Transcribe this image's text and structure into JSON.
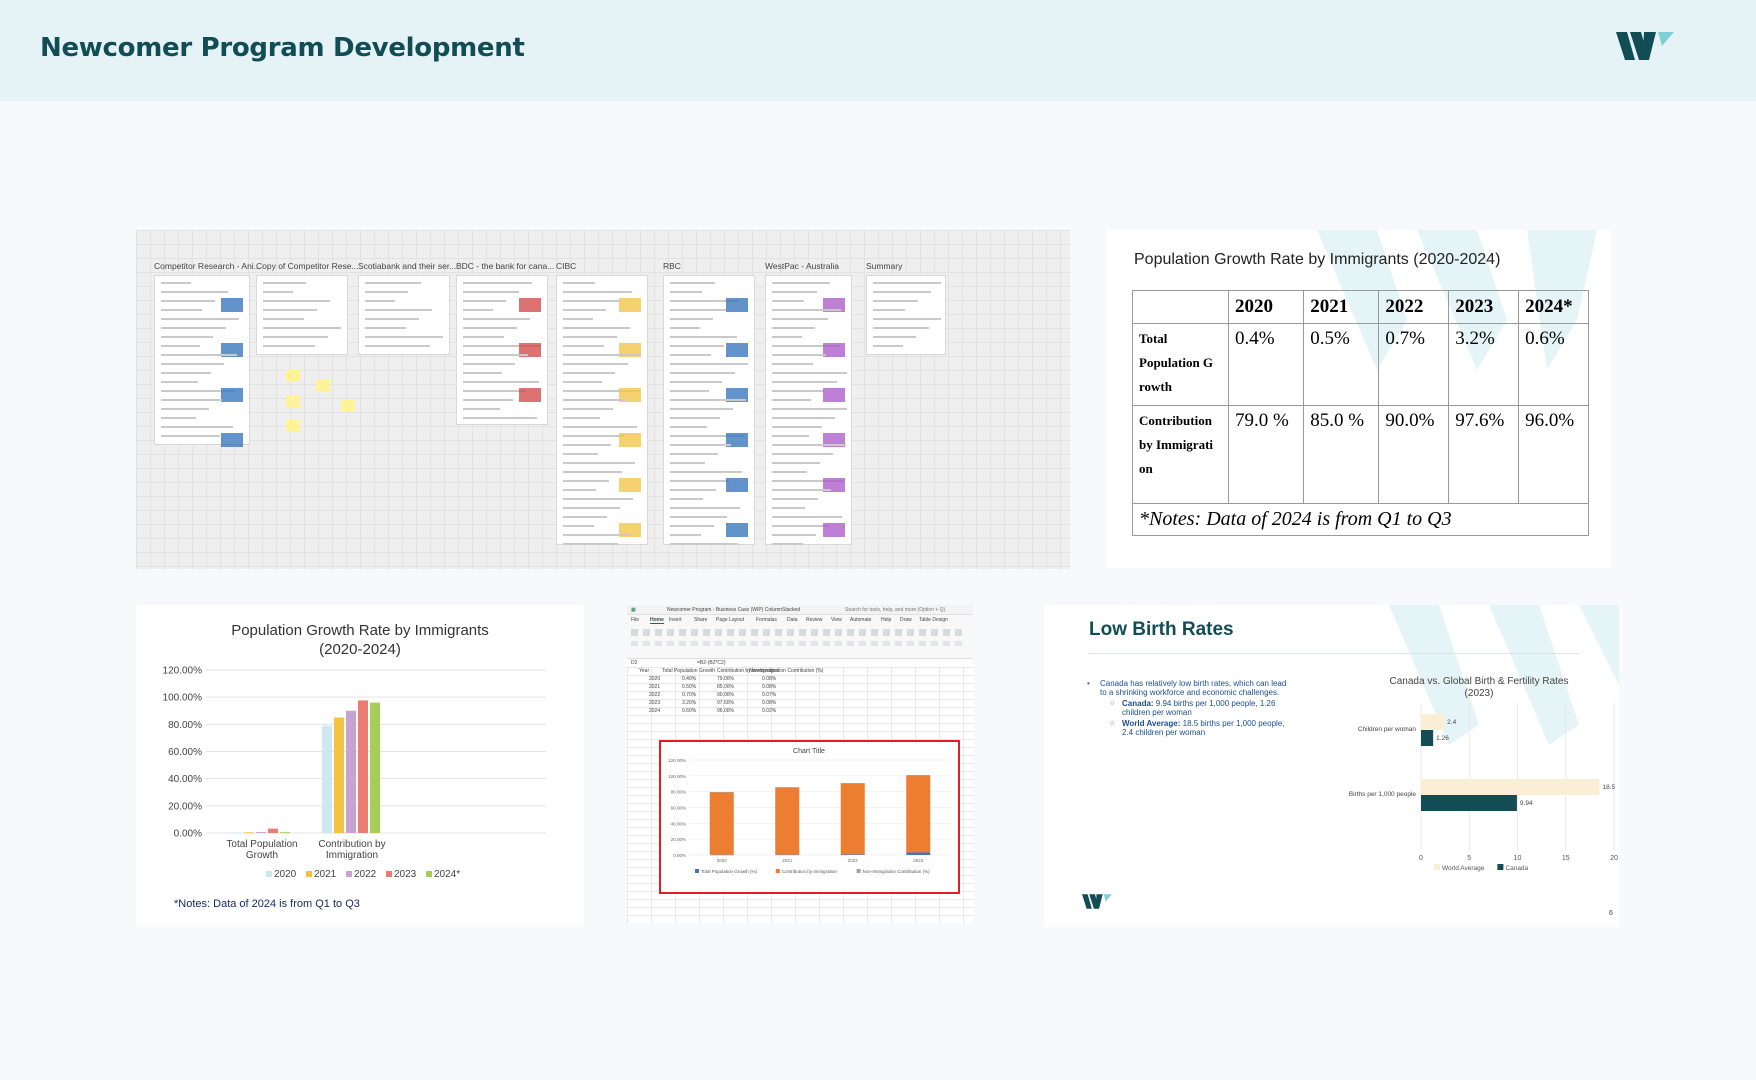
{
  "header": {
    "title": "Newcomer Program Development"
  },
  "board": {
    "frames": [
      "Competitor Research - Ani...",
      "Copy of Competitor Rese...",
      "Scotiabank and their ser...",
      "BDC - the bank for cana...",
      "CIBC",
      "RBC",
      "WestPac - Australia",
      "Summary"
    ]
  },
  "table_slide": {
    "title": "Population Growth Rate by Immigrants (2020-2024)",
    "headers": [
      "2020",
      "2021",
      "2022",
      "2023",
      "2024*"
    ],
    "rows": [
      {
        "label": "Total Population G rowth",
        "values": [
          "0.4%",
          "0.5%",
          "0.7%",
          "3.2%",
          "0.6%"
        ]
      },
      {
        "label": "Contribution by Immigrati on",
        "values": [
          "79.0 %",
          "85.0 %",
          "90.0%",
          "97.6%",
          "96.0%"
        ]
      }
    ],
    "note": "*Notes: Data of 2024 is from Q1 to Q3"
  },
  "chart_slide": {
    "note": "*Notes: Data of 2024 is from Q1 to Q3"
  },
  "excel": {
    "window_title": "Newcomer Program - Business Case (WIP) ColumnStacked",
    "search": "Search for tools, help, and more (Option + Q)",
    "menu": [
      "File",
      "Home",
      "Insert",
      "Share",
      "Page Layout",
      "Formulas",
      "Data",
      "Review",
      "View",
      "Automate",
      "Help",
      "Draw",
      "Table Design"
    ],
    "formula": "=B2-(B2*C2)",
    "cell_ref": "D2",
    "col_headers": [
      "Year",
      "Total Population Growth",
      "Contribution by Immigration",
      "Non-Immigration Contribution (%)"
    ],
    "rows": [
      [
        "2020",
        "0.40%",
        "79.00%",
        "0.08%"
      ],
      [
        "2021",
        "0.50%",
        "85.00%",
        "0.08%"
      ],
      [
        "2022",
        "0.70%",
        "90.00%",
        "0.07%"
      ],
      [
        "2023",
        "3.20%",
        "97.60%",
        "0.08%"
      ],
      [
        "2024",
        "0.60%",
        "96.00%",
        "0.02%"
      ]
    ],
    "chart_title": "Chart Title",
    "legend": [
      "Total Population Growth (%)",
      "Contribution by Immigration",
      "Non-Immigration Contribution (%)"
    ]
  },
  "birth_slide": {
    "title": "Low Birth Rates",
    "bullet": "Canada has relatively low birth rates, which can lead to a shrinking workforce and economic challenges.",
    "sub1_label": "Canada:",
    "sub1_text": " 9.94 births per 1,000 people, 1.26 children per woman",
    "sub2_label": "World Average:",
    "sub2_text": " 18.5 births per 1,000 people, 2.4 children per woman",
    "page_number": "6"
  },
  "chart_data": [
    {
      "type": "bar",
      "title": "Population Growth Rate by Immigrants (2020-2024)",
      "categories": [
        "Total Population Growth",
        "Contribution by Immigration"
      ],
      "series": [
        {
          "name": "2020",
          "values": [
            0.4,
            79.0
          ],
          "color": "#cfe8f0"
        },
        {
          "name": "2021",
          "values": [
            0.5,
            85.0
          ],
          "color": "#f2c240"
        },
        {
          "name": "2022",
          "values": [
            0.7,
            90.0
          ],
          "color": "#c7a3d4"
        },
        {
          "name": "2023",
          "values": [
            3.2,
            97.6
          ],
          "color": "#ec7d73"
        },
        {
          "name": "2024*",
          "values": [
            0.6,
            96.0
          ],
          "color": "#a7cc5a"
        }
      ],
      "ylim": [
        0,
        120
      ],
      "yticks": [
        "0.00%",
        "20.00%",
        "40.00%",
        "60.00%",
        "80.00%",
        "100.00%",
        "120.00%"
      ],
      "legend_position": "bottom"
    },
    {
      "type": "bar",
      "title": "Chart Title",
      "categories": [
        "2020",
        "2021",
        "2022",
        "2023"
      ],
      "series": [
        {
          "name": "Total Population Growth (%)",
          "values": [
            0.4,
            0.5,
            0.7,
            3.2
          ],
          "color": "#4472c4"
        },
        {
          "name": "Contribution by Immigration",
          "values": [
            79,
            85,
            90,
            97.6
          ],
          "color": "#ed7d31"
        },
        {
          "name": "Non-Immigration Contribution (%)",
          "values": [
            0.08,
            0.08,
            0.07,
            0.08
          ],
          "color": "#a5a5a5"
        }
      ],
      "ylim": [
        0,
        120
      ],
      "yticks": [
        "0.00%",
        "20.00%",
        "40.00%",
        "60.00%",
        "80.00%",
        "100.00%",
        "120.00%"
      ],
      "legend_position": "bottom"
    },
    {
      "type": "bar",
      "title": "Canada vs. Global Birth & Fertility Rates (2023)",
      "orientation": "horizontal",
      "categories": [
        "Children per woman",
        "Births per 1,000 people"
      ],
      "series": [
        {
          "name": "World Average",
          "values": [
            2.4,
            18.5
          ],
          "color": "#fbeed6"
        },
        {
          "name": "Canada",
          "values": [
            1.26,
            9.94
          ],
          "color": "#124d55"
        }
      ],
      "xlim": [
        0,
        20
      ],
      "xticks": [
        "0",
        "5",
        "10",
        "15",
        "20"
      ],
      "legend_position": "bottom"
    }
  ]
}
